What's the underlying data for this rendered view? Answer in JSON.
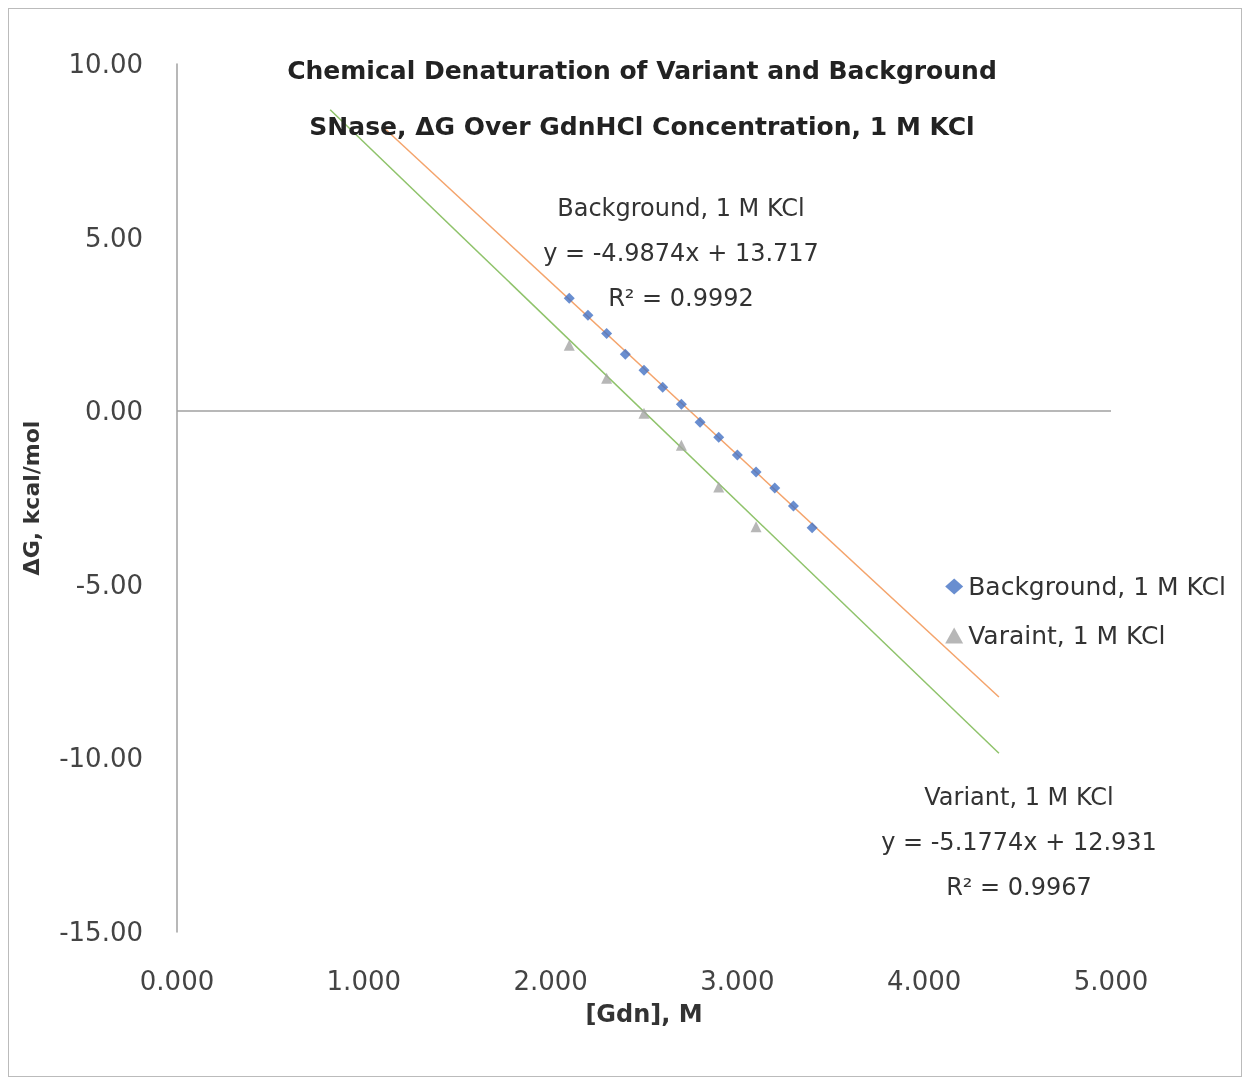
{
  "chart_data": {
    "type": "scatter",
    "title": "Chemical Denaturation of Variant and Background\nSNase, ΔG Over GdnHCl Concentration, 1 M KCl",
    "xlabel": "[Gdn], M",
    "ylabel": "ΔG, kcal/mol",
    "xlim": [
      0,
      5
    ],
    "ylim": [
      -15,
      10
    ],
    "xticks": [
      {
        "value": 0,
        "label": "0.000"
      },
      {
        "value": 1,
        "label": "1.000"
      },
      {
        "value": 2,
        "label": "2.000"
      },
      {
        "value": 3,
        "label": "3.000"
      },
      {
        "value": 4,
        "label": "4.000"
      },
      {
        "value": 5,
        "label": "5.000"
      }
    ],
    "yticks": [
      {
        "value": -15,
        "label": "-15.00"
      },
      {
        "value": -10,
        "label": "-10.00"
      },
      {
        "value": -5,
        "label": "-5.00"
      },
      {
        "value": 0,
        "label": "0.00"
      },
      {
        "value": 5,
        "label": "5.00"
      },
      {
        "value": 10,
        "label": "10.00"
      }
    ],
    "series": [
      {
        "name": "Background, 1 M KCl",
        "color": "#4472c4",
        "marker": "diamond",
        "x": [
          2.1,
          2.2,
          2.3,
          2.4,
          2.5,
          2.6,
          2.7,
          2.8,
          2.9,
          3.0,
          3.1,
          3.2,
          3.3,
          3.4
        ],
        "values": [
          3.25,
          2.76,
          2.24,
          1.64,
          1.18,
          0.69,
          0.2,
          -0.32,
          -0.75,
          -1.26,
          -1.75,
          -2.21,
          -2.73,
          -3.36
        ]
      },
      {
        "name": "Varaint, 1 M KCl",
        "color": "#a5a5a5",
        "marker": "triangle",
        "x": [
          2.1,
          2.3,
          2.5,
          2.7,
          2.9,
          3.1
        ],
        "values": [
          1.9,
          0.95,
          -0.06,
          -0.98,
          -2.18,
          -3.33
        ]
      },
      {
        "type": "line",
        "color": "#f4a46c",
        "marker": "none",
        "x": [
          1.1,
          4.4
        ],
        "values": [
          8.2,
          -8.23
        ]
      },
      {
        "type": "line",
        "color": "#8fc36b",
        "marker": "none",
        "x": [
          0.82,
          4.4
        ],
        "values": [
          8.68,
          -9.85
        ]
      }
    ],
    "ref_lines": [
      {
        "axis": "y",
        "value": 0,
        "color": "#a0a0a0"
      }
    ],
    "annotations": [
      "Background, 1 M KCl\ny = -4.9874x + 13.717\nR² = 0.9992",
      "Variant, 1 M KCl\ny = -5.1774x + 12.931\nR² = 0.9967"
    ],
    "legend": "right",
    "grid": false
  }
}
